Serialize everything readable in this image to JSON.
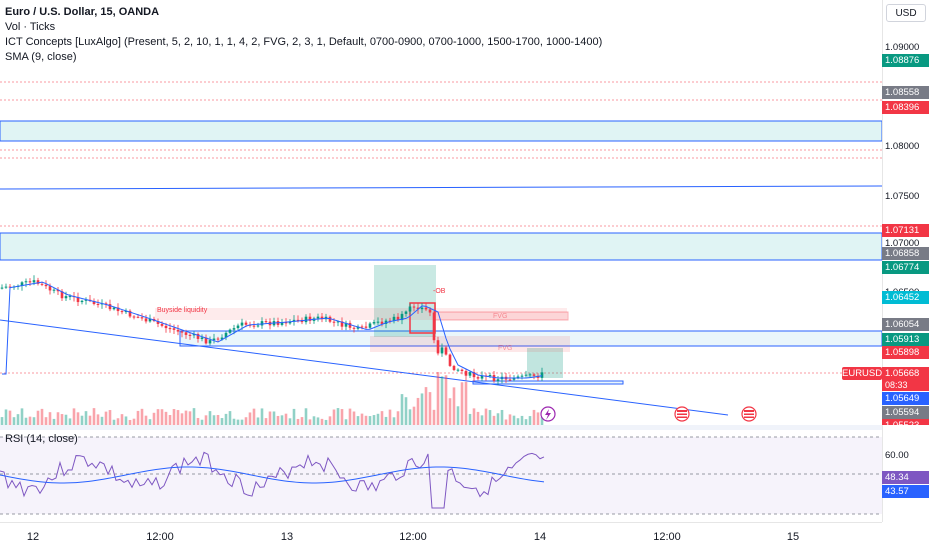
{
  "legend": {
    "title": "Euro / U.S. Dollar, 15, OANDA",
    "vol": "Vol · Ticks",
    "ict": "ICT Concepts [LuxAlgo] (Present, 5, 2, 10, 1, 1, 4, 2, FVG, 2, 3, 1, Default, 0700-0900, 0700-1000, 1500-1700, 1000-1400)",
    "sma": "SMA (9, close)",
    "rsi": "RSI (14, close)"
  },
  "currency": "USD",
  "symbol_tag": "EURUSD",
  "countdown": "08:33",
  "price_labels": [
    "1.09000",
    "1.08000",
    "1.07500",
    "1.07000",
    "1.06500"
  ],
  "price_tags": {
    "p1": "1.08876",
    "p2": "1.08558",
    "p3": "1.08396",
    "p4": "1.07131",
    "p5": "1.06858",
    "p6": "1.06774",
    "p7": "1.06452",
    "p8": "1.06054",
    "p9": "1.05913",
    "p10": "1.05898",
    "p11": "1.05668",
    "p12": "1.05649",
    "p13": "1.05594",
    "p14": "1.05523"
  },
  "rsi_labels": {
    "l60": "60.00",
    "v1": "48.34",
    "v2": "43.57"
  },
  "time_labels": [
    "12",
    "12:00",
    "13",
    "12:00",
    "14",
    "12:00",
    "15"
  ],
  "annotations": {
    "buyside": "Buyside liquidity",
    "ob": "-OB",
    "fvg": "FVG",
    "fvg2": "FVG"
  },
  "colors": {
    "up": "#089981",
    "down": "#f23645",
    "blue": "#2962ff",
    "rsi": "#7e57c2"
  }
}
